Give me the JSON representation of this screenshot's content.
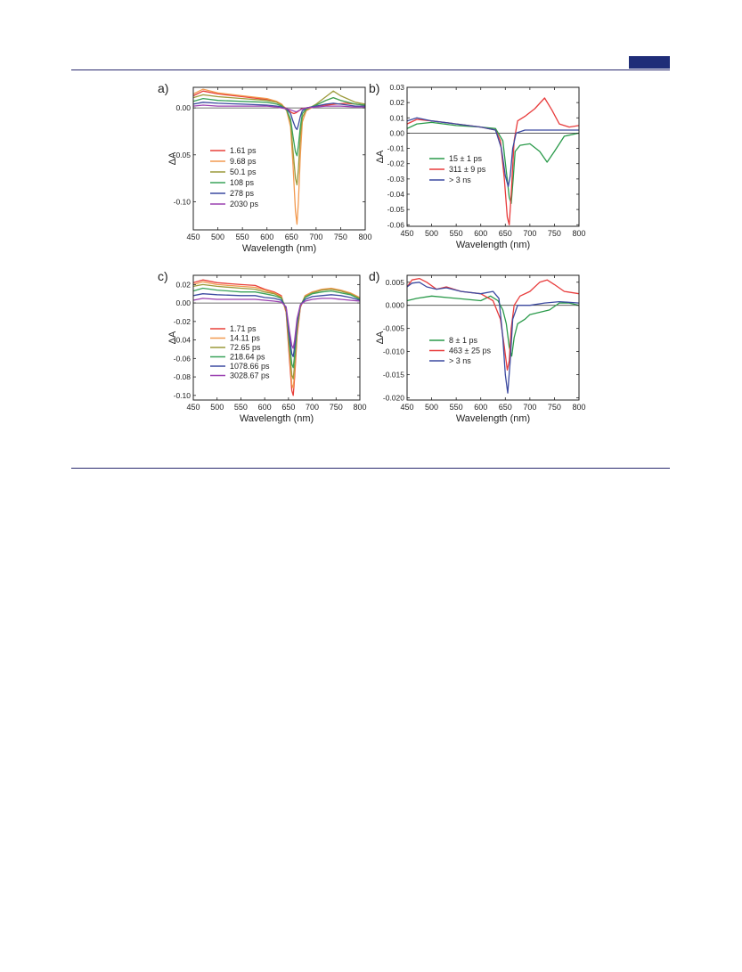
{
  "chart_data": [
    {
      "panel_label": "a)",
      "type": "line",
      "xlabel": "Wavelength (nm)",
      "ylabel": "ΔA",
      "xlim": [
        450,
        800
      ],
      "ylim": [
        -0.13,
        0.022
      ],
      "xticks": [
        450,
        500,
        550,
        600,
        650,
        700,
        750,
        800
      ],
      "yticks": [
        0.0,
        -0.05,
        -0.1
      ],
      "ytick_labels": [
        "0.00",
        "-0.05",
        "-0.10"
      ],
      "zero_line": true,
      "legend_position": "lower-left",
      "series": [
        {
          "name": "1.61 ps",
          "color": "#e8403a",
          "x": [
            450,
            470,
            500,
            550,
            600,
            620,
            630,
            640,
            650,
            655,
            660,
            665,
            670,
            680,
            700,
            720,
            740,
            760,
            780,
            800
          ],
          "y": [
            0.013,
            0.018,
            0.015,
            0.012,
            0.009,
            0.006,
            0.003,
            -0.001,
            -0.005,
            -0.006,
            -0.005,
            -0.003,
            -0.001,
            0.0,
            0.002,
            0.003,
            0.004,
            0.005,
            0.004,
            0.003
          ]
        },
        {
          "name": "9.68 ps",
          "color": "#f29a50",
          "x": [
            450,
            470,
            500,
            550,
            600,
            620,
            630,
            640,
            648,
            653,
            658,
            661,
            664,
            668,
            672,
            680,
            700,
            720,
            735,
            750,
            780,
            800
          ],
          "y": [
            0.015,
            0.02,
            0.016,
            0.013,
            0.01,
            0.007,
            0.004,
            -0.003,
            -0.02,
            -0.06,
            -0.11,
            -0.124,
            -0.1,
            -0.05,
            -0.015,
            -0.003,
            0.003,
            0.008,
            0.011,
            0.008,
            0.004,
            0.003
          ]
        },
        {
          "name": "50.1 ps",
          "color": "#9c9a3a",
          "x": [
            450,
            470,
            500,
            550,
            600,
            620,
            630,
            640,
            648,
            653,
            658,
            661,
            664,
            668,
            672,
            680,
            700,
            720,
            735,
            750,
            780,
            800
          ],
          "y": [
            0.011,
            0.014,
            0.012,
            0.01,
            0.008,
            0.006,
            0.003,
            -0.002,
            -0.015,
            -0.045,
            -0.075,
            -0.082,
            -0.065,
            -0.03,
            -0.01,
            -0.002,
            0.004,
            0.012,
            0.018,
            0.013,
            0.006,
            0.004
          ]
        },
        {
          "name": "108 ps",
          "color": "#3aa35a",
          "x": [
            450,
            470,
            500,
            550,
            600,
            620,
            630,
            640,
            648,
            653,
            658,
            661,
            664,
            668,
            672,
            680,
            700,
            720,
            735,
            750,
            780,
            800
          ],
          "y": [
            0.007,
            0.01,
            0.008,
            0.007,
            0.006,
            0.004,
            0.002,
            -0.002,
            -0.012,
            -0.03,
            -0.047,
            -0.051,
            -0.04,
            -0.02,
            -0.006,
            -0.001,
            0.003,
            0.008,
            0.011,
            0.008,
            0.004,
            0.003
          ]
        },
        {
          "name": "278 ps",
          "color": "#3c4aa0",
          "x": [
            450,
            470,
            500,
            550,
            600,
            620,
            630,
            640,
            648,
            653,
            658,
            661,
            664,
            668,
            672,
            680,
            700,
            720,
            735,
            750,
            780,
            800
          ],
          "y": [
            0.004,
            0.006,
            0.005,
            0.004,
            0.003,
            0.002,
            0.001,
            -0.001,
            -0.006,
            -0.014,
            -0.021,
            -0.023,
            -0.018,
            -0.009,
            -0.003,
            0.0,
            0.002,
            0.004,
            0.005,
            0.004,
            0.002,
            0.002
          ]
        },
        {
          "name": "2030 ps",
          "color": "#9a40b0",
          "x": [
            450,
            470,
            500,
            550,
            600,
            620,
            630,
            640,
            648,
            653,
            658,
            661,
            664,
            668,
            672,
            680,
            700,
            720,
            735,
            750,
            780,
            800
          ],
          "y": [
            0.002,
            0.003,
            0.002,
            0.002,
            0.002,
            0.001,
            0.0,
            -0.001,
            -0.002,
            -0.003,
            -0.004,
            -0.004,
            -0.003,
            -0.002,
            -0.001,
            0.0,
            0.001,
            0.002,
            0.002,
            0.002,
            0.001,
            0.001
          ]
        }
      ]
    },
    {
      "panel_label": "b)",
      "type": "line",
      "xlabel": "Wavelength (nm)",
      "ylabel": "ΔA",
      "xlim": [
        450,
        800
      ],
      "ylim": [
        -0.061,
        0.03
      ],
      "xticks": [
        450,
        500,
        550,
        600,
        650,
        700,
        750,
        800
      ],
      "yticks": [
        0.03,
        0.02,
        0.01,
        0.0,
        -0.01,
        -0.02,
        -0.03,
        -0.04,
        -0.05,
        -0.06
      ],
      "ytick_labels": [
        "0.03",
        "0.02",
        "0.01",
        "0.00",
        "-0.01",
        "-0.02",
        "-0.03",
        "-0.04",
        "-0.05",
        "-0.06"
      ],
      "zero_line": true,
      "legend_position": "middle-left",
      "series": [
        {
          "name": "15 ± 1 ps",
          "color": "#2a9a4a",
          "x": [
            450,
            470,
            500,
            550,
            600,
            630,
            645,
            652,
            658,
            662,
            666,
            670,
            680,
            700,
            720,
            735,
            750,
            770,
            800
          ],
          "y": [
            0.003,
            0.006,
            0.007,
            0.005,
            0.004,
            0.003,
            -0.005,
            -0.025,
            -0.042,
            -0.046,
            -0.03,
            -0.012,
            -0.008,
            -0.007,
            -0.012,
            -0.019,
            -0.012,
            -0.002,
            0.0
          ]
        },
        {
          "name": "311 ± 9 ps",
          "color": "#e83c3c",
          "x": [
            450,
            470,
            500,
            550,
            600,
            630,
            640,
            648,
            654,
            658,
            662,
            668,
            675,
            690,
            710,
            730,
            745,
            760,
            780,
            800
          ],
          "y": [
            0.006,
            0.009,
            0.008,
            0.006,
            0.004,
            0.002,
            -0.005,
            -0.03,
            -0.055,
            -0.06,
            -0.04,
            -0.005,
            0.008,
            0.011,
            0.016,
            0.023,
            0.015,
            0.006,
            0.004,
            0.005
          ]
        },
        {
          "name": "> 3 ns",
          "color": "#3c4aa0",
          "x": [
            450,
            470,
            500,
            550,
            600,
            630,
            642,
            650,
            656,
            660,
            665,
            672,
            690,
            720,
            760,
            800
          ],
          "y": [
            0.008,
            0.01,
            0.008,
            0.006,
            0.004,
            0.002,
            -0.01,
            -0.028,
            -0.035,
            -0.028,
            -0.01,
            0.0,
            0.002,
            0.002,
            0.002,
            0.002
          ]
        }
      ]
    },
    {
      "panel_label": "c)",
      "type": "line",
      "xlabel": "Wavelength (nm)",
      "ylabel": "ΔA",
      "xlim": [
        450,
        800
      ],
      "ylim": [
        -0.105,
        0.03
      ],
      "xticks": [
        450,
        500,
        550,
        600,
        650,
        700,
        750,
        800
      ],
      "yticks": [
        0.02,
        0.0,
        -0.02,
        -0.04,
        -0.06,
        -0.08,
        -0.1
      ],
      "ytick_labels": [
        "0.02",
        "0.00",
        "-0.02",
        "-0.04",
        "-0.06",
        "-0.08",
        "-0.10"
      ],
      "zero_line": true,
      "legend_position": "lower-left",
      "series": [
        {
          "name": "1.71 ps",
          "color": "#e8403a",
          "x": [
            450,
            470,
            500,
            550,
            580,
            600,
            620,
            635,
            645,
            652,
            657,
            660,
            663,
            668,
            675,
            685,
            700,
            720,
            740,
            760,
            780,
            800
          ],
          "y": [
            0.022,
            0.025,
            0.022,
            0.02,
            0.019,
            0.015,
            0.012,
            0.008,
            -0.01,
            -0.06,
            -0.095,
            -0.1,
            -0.08,
            -0.035,
            -0.005,
            0.008,
            0.012,
            0.014,
            0.015,
            0.013,
            0.01,
            0.005
          ]
        },
        {
          "name": "14.11 ps",
          "color": "#f29a50",
          "x": [
            450,
            470,
            500,
            550,
            580,
            600,
            620,
            635,
            645,
            652,
            657,
            660,
            663,
            668,
            675,
            685,
            700,
            720,
            740,
            760,
            780,
            800
          ],
          "y": [
            0.02,
            0.023,
            0.02,
            0.018,
            0.017,
            0.014,
            0.011,
            0.007,
            -0.008,
            -0.055,
            -0.088,
            -0.092,
            -0.075,
            -0.032,
            -0.004,
            0.008,
            0.012,
            0.015,
            0.016,
            0.014,
            0.011,
            0.006
          ]
        },
        {
          "name": "72.65 ps",
          "color": "#9c9a3a",
          "x": [
            450,
            470,
            500,
            550,
            580,
            600,
            620,
            635,
            645,
            652,
            657,
            660,
            663,
            668,
            675,
            685,
            700,
            720,
            740,
            760,
            780,
            800
          ],
          "y": [
            0.018,
            0.02,
            0.018,
            0.016,
            0.015,
            0.012,
            0.01,
            0.006,
            -0.007,
            -0.048,
            -0.078,
            -0.082,
            -0.066,
            -0.028,
            -0.003,
            0.007,
            0.011,
            0.014,
            0.015,
            0.013,
            0.01,
            0.005
          ]
        },
        {
          "name": "218.64 ps",
          "color": "#3aa35a",
          "x": [
            450,
            470,
            500,
            550,
            580,
            600,
            620,
            635,
            645,
            652,
            657,
            660,
            663,
            668,
            675,
            685,
            700,
            720,
            740,
            760,
            780,
            800
          ],
          "y": [
            0.013,
            0.016,
            0.014,
            0.012,
            0.012,
            0.01,
            0.008,
            0.005,
            -0.006,
            -0.042,
            -0.066,
            -0.07,
            -0.056,
            -0.024,
            -0.003,
            0.006,
            0.01,
            0.012,
            0.013,
            0.011,
            0.009,
            0.004
          ]
        },
        {
          "name": "1078.66 ps",
          "color": "#3c4aa0",
          "x": [
            450,
            470,
            500,
            550,
            580,
            600,
            620,
            635,
            645,
            652,
            657,
            660,
            663,
            668,
            675,
            685,
            700,
            720,
            740,
            760,
            780,
            800
          ],
          "y": [
            0.008,
            0.01,
            0.009,
            0.008,
            0.008,
            0.006,
            0.005,
            0.003,
            -0.005,
            -0.036,
            -0.055,
            -0.058,
            -0.047,
            -0.02,
            -0.002,
            0.004,
            0.007,
            0.008,
            0.009,
            0.008,
            0.006,
            0.003
          ]
        },
        {
          "name": "3028.67 ps",
          "color": "#9a40b0",
          "x": [
            450,
            470,
            500,
            550,
            580,
            600,
            620,
            635,
            645,
            652,
            657,
            660,
            663,
            668,
            675,
            685,
            700,
            720,
            740,
            760,
            780,
            800
          ],
          "y": [
            0.003,
            0.005,
            0.004,
            0.004,
            0.004,
            0.003,
            0.002,
            0.001,
            -0.004,
            -0.03,
            -0.046,
            -0.049,
            -0.04,
            -0.017,
            -0.002,
            0.002,
            0.004,
            0.005,
            0.005,
            0.004,
            0.003,
            0.002
          ]
        }
      ]
    },
    {
      "panel_label": "d)",
      "type": "line",
      "xlabel": "Wavelength (nm)",
      "ylabel": "ΔA",
      "xlim": [
        450,
        800
      ],
      "ylim": [
        -0.0205,
        0.0065
      ],
      "xticks": [
        450,
        500,
        550,
        600,
        650,
        700,
        750,
        800
      ],
      "yticks": [
        0.005,
        0.0,
        -0.005,
        -0.01,
        -0.015,
        -0.02
      ],
      "ytick_labels": [
        "0.005",
        "0.000",
        "-0.005",
        "-0.010",
        "-0.015",
        "-0.020"
      ],
      "zero_line": true,
      "legend_position": "middle-left",
      "series": [
        {
          "name": "8 ± 1 ps",
          "color": "#2a9a4a",
          "x": [
            450,
            470,
            500,
            550,
            600,
            620,
            635,
            645,
            652,
            658,
            663,
            668,
            675,
            690,
            700,
            720,
            740,
            760,
            780,
            800
          ],
          "y": [
            0.001,
            0.0015,
            0.002,
            0.0015,
            0.001,
            0.002,
            0.001,
            -0.001,
            -0.004,
            -0.009,
            -0.011,
            -0.007,
            -0.004,
            -0.003,
            -0.002,
            -0.0015,
            -0.001,
            0.0005,
            0.0005,
            0.0
          ]
        },
        {
          "name": "463 ± 25 ps",
          "color": "#e83c3c",
          "x": [
            450,
            460,
            475,
            490,
            510,
            530,
            560,
            600,
            625,
            640,
            648,
            654,
            658,
            662,
            668,
            680,
            700,
            720,
            735,
            750,
            770,
            800
          ],
          "y": [
            0.004,
            0.0055,
            0.0058,
            0.005,
            0.0035,
            0.004,
            0.003,
            0.0025,
            0.001,
            -0.003,
            -0.009,
            -0.014,
            -0.012,
            -0.005,
            0.0,
            0.002,
            0.003,
            0.005,
            0.0055,
            0.0045,
            0.003,
            0.0025
          ]
        },
        {
          "name": "> 3 ns",
          "color": "#3c4aa0",
          "x": [
            450,
            460,
            475,
            490,
            510,
            530,
            560,
            600,
            625,
            637,
            645,
            650,
            655,
            660,
            665,
            675,
            700,
            730,
            760,
            800
          ],
          "y": [
            0.004,
            0.0048,
            0.005,
            0.004,
            0.0035,
            0.0038,
            0.003,
            0.0025,
            0.003,
            0.0015,
            -0.007,
            -0.015,
            -0.019,
            -0.012,
            -0.003,
            0.0,
            0.0,
            0.0005,
            0.0008,
            0.0005
          ]
        }
      ]
    }
  ]
}
